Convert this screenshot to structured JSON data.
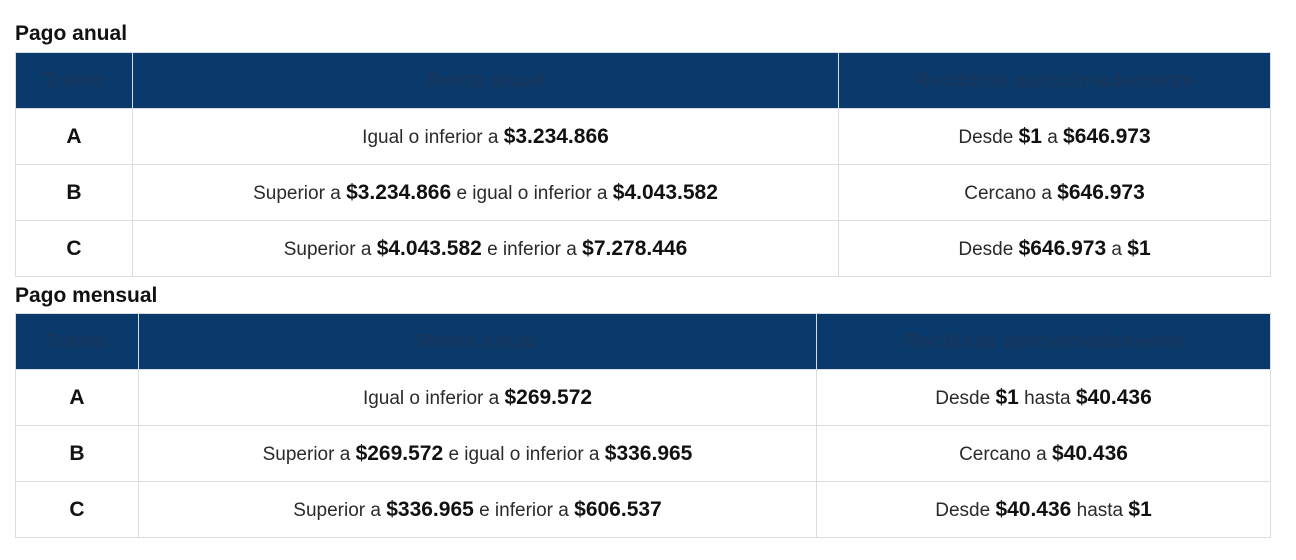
{
  "annual": {
    "title": "Pago anual",
    "headers": [
      "Tramo",
      "Renta anual",
      "Recibirás aproximadamente"
    ],
    "rows": [
      {
        "tramo": "A",
        "renta": [
          [
            "Igual o inferior a ",
            false
          ],
          [
            "$3.234.866",
            true
          ]
        ],
        "recibe": [
          [
            "Desde ",
            false
          ],
          [
            "$1",
            true
          ],
          [
            " a ",
            false
          ],
          [
            "$646.973",
            true
          ]
        ]
      },
      {
        "tramo": "B",
        "renta": [
          [
            "Superior a ",
            false
          ],
          [
            "$3.234.866",
            true
          ],
          [
            " e igual o inferior a ",
            false
          ],
          [
            "$4.043.582",
            true
          ]
        ],
        "recibe": [
          [
            "Cercano a ",
            false
          ],
          [
            "$646.973",
            true
          ]
        ]
      },
      {
        "tramo": "C",
        "renta": [
          [
            "Superior a ",
            false
          ],
          [
            "$4.043.582",
            true
          ],
          [
            " e inferior a ",
            false
          ],
          [
            "$7.278.446",
            true
          ]
        ],
        "recibe": [
          [
            "Desde ",
            false
          ],
          [
            "$646.973",
            true
          ],
          [
            " a ",
            false
          ],
          [
            "$1",
            true
          ]
        ]
      }
    ]
  },
  "monthly": {
    "title": "Pago mensual",
    "headers": [
      "Tramo",
      "Renta anual",
      "Recibirás aproximadamente"
    ],
    "rows": [
      {
        "tramo": "A",
        "renta": [
          [
            "Igual o inferior a ",
            false
          ],
          [
            "$269.572",
            true
          ]
        ],
        "recibe": [
          [
            "Desde ",
            false
          ],
          [
            "$1",
            true
          ],
          [
            " hasta ",
            false
          ],
          [
            "$40.436",
            true
          ]
        ]
      },
      {
        "tramo": "B",
        "renta": [
          [
            "Superior a ",
            false
          ],
          [
            "$269.572",
            true
          ],
          [
            " e igual o inferior a ",
            false
          ],
          [
            "$336.965",
            true
          ]
        ],
        "recibe": [
          [
            "Cercano a ",
            false
          ],
          [
            "$40.436",
            true
          ]
        ]
      },
      {
        "tramo": "C",
        "renta": [
          [
            "Superior a ",
            false
          ],
          [
            "$336.965",
            true
          ],
          [
            " e inferior a ",
            false
          ],
          [
            "$606.537",
            true
          ]
        ],
        "recibe": [
          [
            "Desde ",
            false
          ],
          [
            "$40.436",
            true
          ],
          [
            " hasta ",
            false
          ],
          [
            "$1",
            true
          ]
        ]
      }
    ]
  },
  "colors": {
    "header_bg": "#0a3a6b",
    "header_text": "#17375e",
    "border": "#d9dde2"
  }
}
